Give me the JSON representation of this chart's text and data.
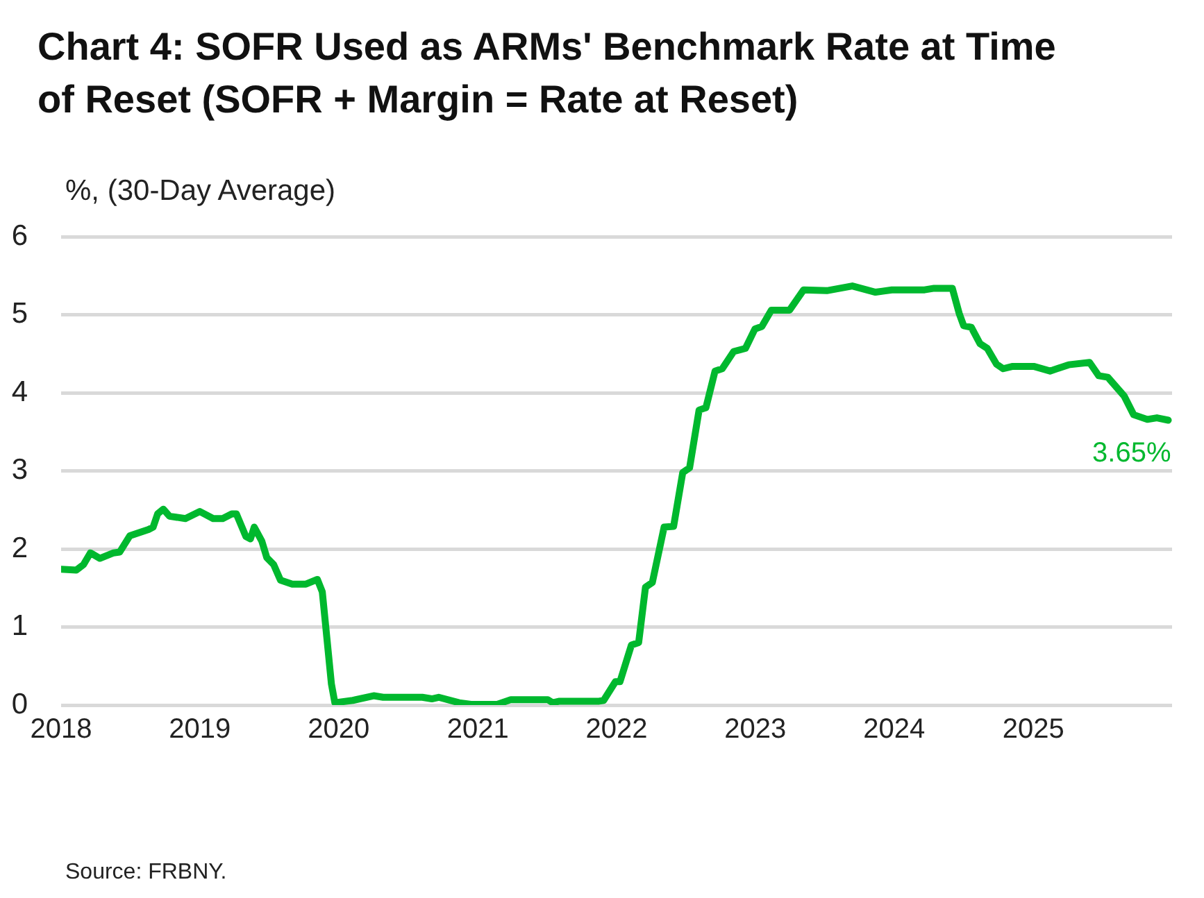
{
  "chart_data": {
    "type": "line",
    "title": "Chart 4: SOFR Used as ARMs' Benchmark Rate at Time of Reset (SOFR + Margin = Rate at Reset)",
    "ylabel": "%, (30-Day Average)",
    "x": [
      "2018-01-01",
      "2018-02-10",
      "2018-03-01",
      "2018-03-19",
      "2018-04-13",
      "2018-05-19",
      "2018-06-04",
      "2018-07-01",
      "2018-08-19",
      "2018-08-31",
      "2018-09-12",
      "2018-09-27",
      "2018-10-13",
      "2018-11-24",
      "2019-01-01",
      "2019-02-05",
      "2019-03-02",
      "2019-03-26",
      "2019-04-07",
      "2019-05-02",
      "2019-05-14",
      "2019-05-24",
      "2019-06-13",
      "2019-06-26",
      "2019-07-14",
      "2019-08-01",
      "2019-09-01",
      "2019-10-07",
      "2019-11-06",
      "2019-11-19",
      "2019-12-01",
      "2019-12-13",
      "2019-12-22",
      "2020-02-07",
      "2020-04-02",
      "2020-04-27",
      "2020-08-08",
      "2020-09-02",
      "2020-09-20",
      "2020-11-13",
      "2020-12-14",
      "2021-02-21",
      "2021-03-29",
      "2021-07-04",
      "2021-07-17",
      "2021-08-04",
      "2021-11-16",
      "2021-11-28",
      "2021-12-29",
      "2022-01-10",
      "2022-02-09",
      "2022-02-28",
      "2022-03-18",
      "2022-04-05",
      "2022-05-06",
      "2022-05-31",
      "2022-06-24",
      "2022-07-12",
      "2022-08-06",
      "2022-08-24",
      "2022-09-17",
      "2022-10-06",
      "2022-11-05",
      "2022-12-06",
      "2022-12-31",
      "2023-01-18",
      "2023-02-12",
      "2023-04-01",
      "2023-05-08",
      "2023-07-08",
      "2023-09-13",
      "2023-11-13",
      "2023-12-26",
      "2024-03-21",
      "2024-04-15",
      "2024-06-02",
      "2024-06-20",
      "2024-07-02",
      "2024-07-22",
      "2024-08-14",
      "2024-09-02",
      "2024-09-26",
      "2024-10-14",
      "2024-11-08",
      "2025-01-02",
      "2025-02-14",
      "2025-04-04",
      "2025-05-29",
      "2025-06-22",
      "2025-07-16",
      "2025-08-28",
      "2025-09-22",
      "2025-10-28",
      "2025-11-22",
      "2025-12-22"
    ],
    "values": [
      1.74,
      1.73,
      1.8,
      1.95,
      1.88,
      1.95,
      1.96,
      2.17,
      2.25,
      2.28,
      2.45,
      2.51,
      2.42,
      2.39,
      2.48,
      2.39,
      2.39,
      2.45,
      2.45,
      2.16,
      2.13,
      2.28,
      2.1,
      1.89,
      1.8,
      1.6,
      1.55,
      1.55,
      1.61,
      1.45,
      0.86,
      0.27,
      0.03,
      0.06,
      0.12,
      0.1,
      0.1,
      0.08,
      0.1,
      0.03,
      0.01,
      0.01,
      0.07,
      0.07,
      0.03,
      0.05,
      0.05,
      0.06,
      0.3,
      0.3,
      0.77,
      0.8,
      1.51,
      1.57,
      2.28,
      2.29,
      2.98,
      3.04,
      3.78,
      3.81,
      4.28,
      4.31,
      4.53,
      4.57,
      4.82,
      4.85,
      5.06,
      5.06,
      5.32,
      5.31,
      5.37,
      5.29,
      5.32,
      5.32,
      5.34,
      5.34,
      5.02,
      4.86,
      4.84,
      4.63,
      4.57,
      4.37,
      4.31,
      4.34,
      4.34,
      4.28,
      4.36,
      4.39,
      4.22,
      4.2,
      3.96,
      3.72,
      3.66,
      3.68,
      3.65
    ],
    "color": "#00b82e",
    "xlim": [
      "2018-01-01",
      "2026-01-01"
    ],
    "xticks": [
      "2018",
      "2019",
      "2020",
      "2021",
      "2022",
      "2023",
      "2024",
      "2025"
    ],
    "ylim": [
      0,
      6
    ],
    "yticks": [
      0,
      1,
      2,
      3,
      4,
      5,
      6
    ],
    "grid": "y",
    "legend": false,
    "marker": "none",
    "annotations": [
      {
        "text": "3.65%",
        "x": "2025-12-22",
        "y": 3.65
      },
      "Source: FRBNY."
    ]
  }
}
